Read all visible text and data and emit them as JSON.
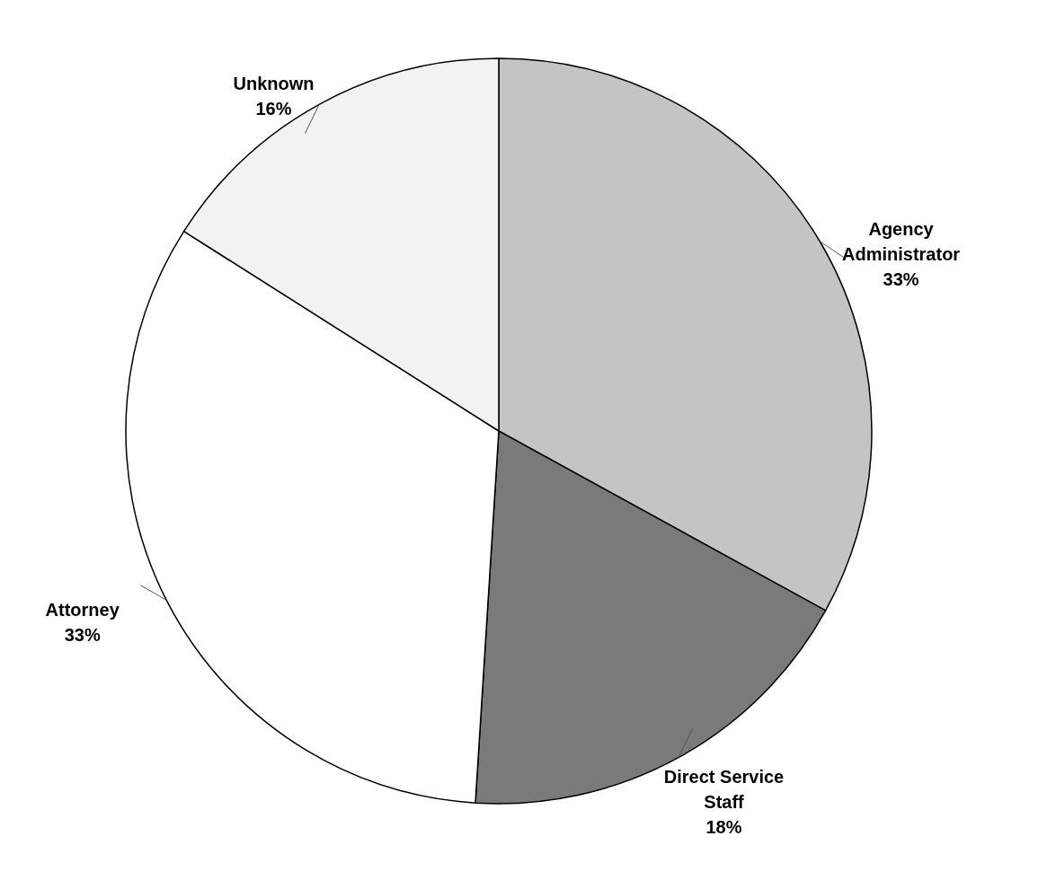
{
  "chart_data": {
    "type": "pie",
    "categories": [
      "Agency Administrator",
      "Direct Service Staff",
      "Attorney",
      "Unknown"
    ],
    "values": [
      33,
      18,
      33,
      16
    ],
    "value_labels": [
      "33%",
      "18%",
      "33%",
      "16%"
    ],
    "colors": [
      "#c4c4c4",
      "#7a7a7a",
      "#ffffff",
      "#f2f2f2"
    ]
  }
}
